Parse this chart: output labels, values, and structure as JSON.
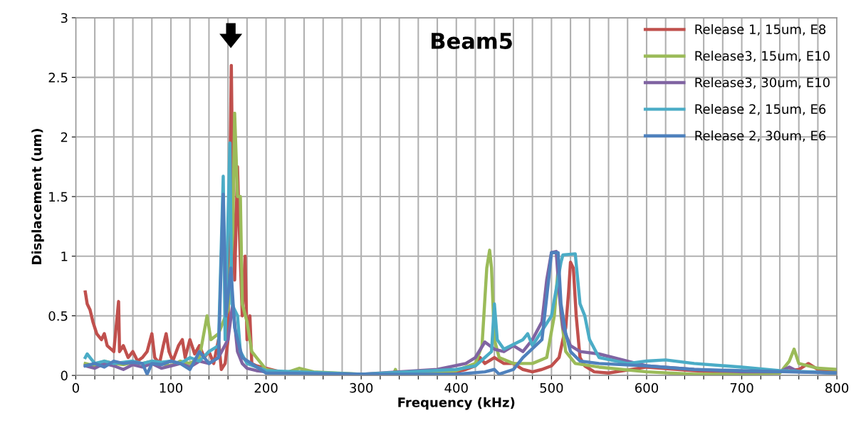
{
  "chart_data": {
    "type": "line",
    "title": "Beam5",
    "xlabel": "Frequency (kHz)",
    "ylabel": "Displacement (um)",
    "xlim": [
      0,
      800
    ],
    "ylim": [
      0,
      3
    ],
    "xticks": [
      0,
      {
        "value": 20,
        "label": null
      },
      {
        "value": 40,
        "label": null
      },
      {
        "value": 60,
        "label": null
      },
      {
        "value": 80,
        "label": null
      },
      100,
      {
        "value": 120,
        "label": null
      },
      {
        "value": 140,
        "label": null
      },
      {
        "value": 160,
        "label": null
      },
      {
        "value": 180,
        "label": null
      },
      200,
      {
        "value": 220,
        "label": null
      },
      {
        "value": 240,
        "label": null
      },
      {
        "value": 260,
        "label": null
      },
      {
        "value": 280,
        "label": null
      },
      300,
      {
        "value": 320,
        "label": null
      },
      {
        "value": 340,
        "label": null
      },
      {
        "value": 360,
        "label": null
      },
      {
        "value": 380,
        "label": null
      },
      400,
      {
        "value": 420,
        "label": null
      },
      {
        "value": 440,
        "label": null
      },
      {
        "value": 460,
        "label": null
      },
      {
        "value": 480,
        "label": null
      },
      500,
      {
        "value": 520,
        "label": null
      },
      {
        "value": 540,
        "label": null
      },
      {
        "value": 560,
        "label": null
      },
      {
        "value": 580,
        "label": null
      },
      600,
      {
        "value": 620,
        "label": null
      },
      {
        "value": 640,
        "label": null
      },
      {
        "value": 660,
        "label": null
      },
      {
        "value": 680,
        "label": null
      },
      700,
      {
        "value": 720,
        "label": null
      },
      {
        "value": 740,
        "label": null
      },
      {
        "value": 760,
        "label": null
      },
      {
        "value": 780,
        "label": null
      },
      800
    ],
    "yticks": [
      0,
      0.5,
      1,
      1.5,
      2,
      2.5,
      3
    ],
    "grid": true,
    "legend": "top right",
    "marker": "none",
    "line_style": "solid",
    "series": [
      {
        "name": "Release 1, 15um, E8",
        "color": "#c0504d",
        "x": [
          10,
          12,
          15,
          18,
          22,
          27,
          30,
          33,
          40,
          45,
          46,
          50,
          55,
          60,
          65,
          70,
          75,
          80,
          83,
          88,
          92,
          95,
          98,
          102,
          108,
          112,
          115,
          120,
          125,
          130,
          135,
          140,
          145,
          150,
          153,
          157,
          160,
          163.5,
          165,
          167,
          170,
          172,
          175,
          178,
          180,
          183,
          185,
          190,
          220,
          240,
          260,
          300,
          350,
          380,
          400,
          410,
          420,
          425,
          430,
          440,
          450,
          460,
          470,
          480,
          490,
          500,
          508,
          512,
          515,
          518,
          520,
          523,
          526,
          530,
          535,
          545,
          560,
          600,
          650,
          700,
          740,
          760,
          770,
          780,
          800
        ],
        "values": [
          0.7,
          0.6,
          0.55,
          0.45,
          0.35,
          0.3,
          0.35,
          0.25,
          0.2,
          0.62,
          0.2,
          0.25,
          0.15,
          0.2,
          0.12,
          0.15,
          0.2,
          0.35,
          0.15,
          0.1,
          0.25,
          0.35,
          0.2,
          0.12,
          0.25,
          0.3,
          0.15,
          0.3,
          0.18,
          0.25,
          0.15,
          0.2,
          0.1,
          0.3,
          0.05,
          0.1,
          0.3,
          2.6,
          1.5,
          0.8,
          1.75,
          1.2,
          0.5,
          1.0,
          0.3,
          0.5,
          0.1,
          0.08,
          0.02,
          0.03,
          0.01,
          0.01,
          0.01,
          0.02,
          0.03,
          0.05,
          0.08,
          0.15,
          0.1,
          0.15,
          0.1,
          0.1,
          0.05,
          0.03,
          0.05,
          0.08,
          0.15,
          0.3,
          0.4,
          0.7,
          0.95,
          0.9,
          0.5,
          0.15,
          0.08,
          0.03,
          0.02,
          0.07,
          0.04,
          0.02,
          0.03,
          0.05,
          0.1,
          0.05,
          0.03
        ]
      },
      {
        "name": "Release3, 15um, E10",
        "color": "#9bbb59",
        "x": [
          10,
          20,
          30,
          40,
          50,
          60,
          70,
          80,
          90,
          100,
          110,
          120,
          130,
          138,
          142,
          150,
          160,
          165,
          167,
          170,
          173,
          175,
          180,
          185,
          190,
          200,
          220,
          235,
          250,
          300,
          334,
          336,
          338,
          400,
          420,
          427,
          432,
          435,
          437,
          440,
          445,
          460,
          480,
          495,
          503,
          507,
          510,
          515,
          525,
          550,
          600,
          650,
          700,
          740,
          750,
          755,
          760,
          780,
          800
        ],
        "values": [
          0.1,
          0.08,
          0.12,
          0.1,
          0.09,
          0.11,
          0.1,
          0.12,
          0.1,
          0.08,
          0.12,
          0.1,
          0.15,
          0.5,
          0.3,
          0.35,
          0.55,
          1.2,
          2.2,
          1.5,
          1.5,
          0.6,
          0.45,
          0.2,
          0.15,
          0.05,
          0.02,
          0.06,
          0.03,
          0.01,
          0.01,
          0.05,
          0.01,
          0.04,
          0.1,
          0.25,
          0.9,
          1.05,
          0.9,
          0.3,
          0.15,
          0.1,
          0.1,
          0.15,
          0.5,
          0.9,
          0.5,
          0.2,
          0.1,
          0.07,
          0.03,
          0.01,
          0.01,
          0.02,
          0.12,
          0.22,
          0.1,
          0.06,
          0.05
        ]
      },
      {
        "name": "Release3, 30um, E10",
        "color": "#8064a2",
        "x": [
          10,
          20,
          30,
          40,
          50,
          60,
          70,
          80,
          90,
          100,
          110,
          120,
          130,
          140,
          150,
          160,
          165,
          170,
          175,
          180,
          190,
          200,
          300,
          380,
          410,
          420,
          430,
          440,
          450,
          460,
          470,
          480,
          490,
          495,
          500,
          505,
          508,
          512,
          520,
          530,
          550,
          580,
          600,
          650,
          700,
          740,
          750,
          760,
          800
        ],
        "values": [
          0.08,
          0.06,
          0.1,
          0.08,
          0.05,
          0.09,
          0.07,
          0.1,
          0.06,
          0.08,
          0.1,
          0.07,
          0.12,
          0.1,
          0.15,
          0.3,
          0.6,
          0.2,
          0.1,
          0.06,
          0.04,
          0.03,
          0.01,
          0.05,
          0.1,
          0.15,
          0.28,
          0.22,
          0.2,
          0.25,
          0.2,
          0.3,
          0.45,
          0.8,
          1.03,
          1.04,
          0.7,
          0.4,
          0.25,
          0.2,
          0.18,
          0.12,
          0.08,
          0.05,
          0.03,
          0.03,
          0.07,
          0.03,
          0.02
        ]
      },
      {
        "name": "Release 2, 15um, E6",
        "color": "#4bacc6",
        "x": [
          10,
          12,
          15,
          20,
          30,
          40,
          50,
          60,
          70,
          80,
          90,
          100,
          110,
          120,
          130,
          140,
          150,
          155,
          157,
          162,
          164,
          170,
          173,
          180,
          200,
          300,
          400,
          420,
          430,
          437,
          440,
          443,
          450,
          470,
          475,
          480,
          500,
          510,
          512,
          525,
          530,
          535,
          540,
          550,
          580,
          600,
          620,
          650,
          700,
          740,
          800
        ],
        "values": [
          0.15,
          0.18,
          0.15,
          0.1,
          0.12,
          0.1,
          0.11,
          0.12,
          0.1,
          0.12,
          0.11,
          0.12,
          0.1,
          0.15,
          0.12,
          0.2,
          0.25,
          1.67,
          0.3,
          1.95,
          0.6,
          0.5,
          0.2,
          0.1,
          0.04,
          0.01,
          0.05,
          0.08,
          0.15,
          0.2,
          0.6,
          0.3,
          0.22,
          0.3,
          0.35,
          0.25,
          0.5,
          0.95,
          1.01,
          1.02,
          0.6,
          0.5,
          0.3,
          0.15,
          0.1,
          0.12,
          0.13,
          0.1,
          0.07,
          0.04,
          0.02
        ]
      },
      {
        "name": "Release 2, 30um, E6",
        "color": "#4f81bd",
        "x": [
          10,
          20,
          30,
          40,
          50,
          60,
          70,
          75,
          80,
          90,
          100,
          110,
          120,
          130,
          140,
          150,
          155,
          158,
          163,
          167,
          175,
          200,
          300,
          400,
          430,
          440,
          445,
          460,
          470,
          490,
          497,
          500,
          507,
          510,
          515,
          520,
          530,
          550,
          600,
          650,
          700,
          800
        ],
        "values": [
          0.08,
          0.1,
          0.07,
          0.12,
          0.1,
          0.11,
          0.1,
          0.01,
          0.1,
          0.09,
          0.12,
          0.1,
          0.05,
          0.2,
          0.1,
          0.15,
          1.52,
          0.5,
          0.9,
          0.4,
          0.15,
          0.02,
          0.01,
          0.01,
          0.03,
          0.05,
          0.01,
          0.05,
          0.15,
          0.3,
          0.8,
          1.03,
          1.03,
          0.6,
          0.35,
          0.2,
          0.12,
          0.1,
          0.08,
          0.05,
          0.04,
          0.02
        ]
      }
    ]
  }
}
